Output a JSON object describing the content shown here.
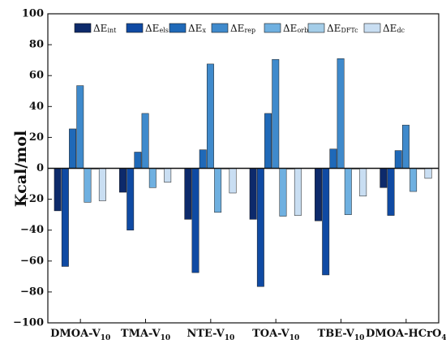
{
  "chart_data": {
    "type": "bar",
    "ylabel": "Kcal/mol",
    "ylim": [
      -100,
      100
    ],
    "yticks": [
      -100,
      -80,
      -60,
      -40,
      -20,
      0,
      20,
      40,
      60,
      80,
      100
    ],
    "grid": false,
    "legend_position": "top",
    "categories": [
      {
        "base": "DMOA-V",
        "sub": "10",
        "tail": "",
        "tailsub": ""
      },
      {
        "base": "TMA-V",
        "sub": "10",
        "tail": "",
        "tailsub": ""
      },
      {
        "base": "NTE-V",
        "sub": "10",
        "tail": "",
        "tailsub": ""
      },
      {
        "base": "TOA-V",
        "sub": "10",
        "tail": "",
        "tailsub": ""
      },
      {
        "base": "TBE-V",
        "sub": "10",
        "tail": "",
        "tailsub": ""
      },
      {
        "base": "DMOA-HCrO",
        "sub": "4",
        "tail": "",
        "tailsub": ""
      }
    ],
    "series": [
      {
        "name": "ΔE",
        "sub": "int",
        "color": "#0d2a6b",
        "values": [
          -27.5,
          -15.5,
          -33,
          -33,
          -34,
          -12.5
        ]
      },
      {
        "name": "ΔE",
        "sub": "els",
        "color": "#0f4aa3",
        "values": [
          -63.5,
          -40,
          -67.5,
          -76.5,
          -69,
          -30.5
        ]
      },
      {
        "name": "ΔE",
        "sub": "x",
        "color": "#1f69b8",
        "values": [
          25.5,
          10.5,
          12,
          35.5,
          12.5,
          11.5
        ]
      },
      {
        "name": "ΔE",
        "sub": "rep",
        "color": "#3f8acc",
        "values": [
          53.5,
          35.5,
          67.5,
          70.5,
          71,
          28
        ]
      },
      {
        "name": "ΔE",
        "sub": "orb",
        "color": "#6fb0e0",
        "values": [
          -22,
          -12.5,
          -28.5,
          -31,
          -30,
          -15
        ]
      },
      {
        "name": "ΔE",
        "sub": "DFTc",
        "color": "#a4cde8",
        "values": [
          -0.5,
          0,
          0,
          -0.5,
          -0.5,
          0
        ]
      },
      {
        "name": "ΔE",
        "sub": "dc",
        "color": "#c9def2",
        "values": [
          -21,
          -9,
          -16,
          -30.5,
          -18,
          -6.5
        ]
      }
    ]
  }
}
